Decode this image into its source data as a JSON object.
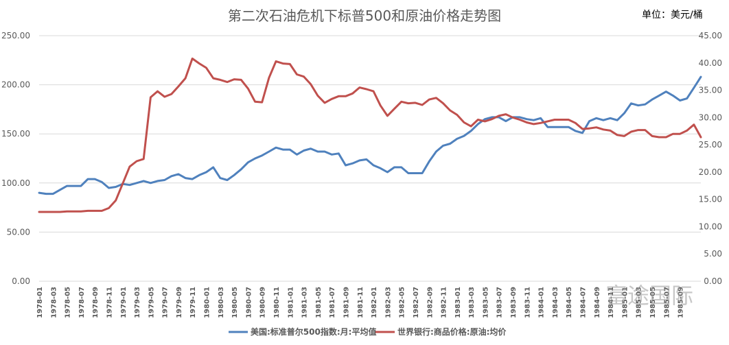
{
  "chart_data": {
    "type": "line",
    "title": "第二次石油危机下标普500和原油价格走势图",
    "unit_label": "单位：美元/桶",
    "watermark": "富途国际",
    "y_left": {
      "ylim": [
        0,
        250
      ],
      "ticks": [
        "0.00",
        "50.00",
        "100.00",
        "150.00",
        "200.00",
        "250.00"
      ]
    },
    "y_right": {
      "ylim": [
        0,
        45
      ],
      "ticks": [
        "0.00",
        "5.00",
        "10.00",
        "15.00",
        "20.00",
        "25.00",
        "30.00",
        "35.00",
        "40.00",
        "45.00"
      ]
    },
    "x_tick_labels": [
      "1978-01",
      "1978-03",
      "1978-05",
      "1978-07",
      "1978-09",
      "1978-11",
      "1979-01",
      "1979-03",
      "1979-05",
      "1979-07",
      "1979-09",
      "1979-11",
      "1980-01",
      "1980-03",
      "1980-05",
      "1980-07",
      "1980-09",
      "1980-11",
      "1981-01",
      "1981-03",
      "1981-05",
      "1981-07",
      "1981-09",
      "1981-11",
      "1982-01",
      "1982-03",
      "1982-05",
      "1982-07",
      "1982-09",
      "1982-11",
      "1983-01",
      "1983-03",
      "1983-05",
      "1983-07",
      "1983-09",
      "1983-11",
      "1984-01",
      "1984-03",
      "1984-05",
      "1984-07",
      "1984-09",
      "1984-11",
      "1985-01",
      "1985-03",
      "1985-05",
      "1985-07",
      "1985-09"
    ],
    "series": [
      {
        "name": "美国:标准普尔500指数:月:平均值",
        "color": "#4f81bd",
        "axis": "left",
        "values": [
          90,
          89,
          89,
          93,
          97,
          97,
          97,
          104,
          104,
          101,
          95,
          96,
          99,
          98,
          100,
          102,
          100,
          102,
          103,
          107,
          109,
          105,
          104,
          108,
          111,
          116,
          105,
          103,
          108,
          114,
          121,
          125,
          128,
          132,
          136,
          134,
          134,
          129,
          133,
          135,
          132,
          132,
          129,
          130,
          118,
          120,
          123,
          124,
          118,
          115,
          111,
          116,
          116,
          110,
          110,
          110,
          122,
          132,
          138,
          140,
          145,
          148,
          153,
          160,
          165,
          167,
          167,
          163,
          167,
          167,
          165,
          164,
          166,
          157,
          157,
          157,
          157,
          153,
          151,
          163,
          166,
          164,
          166,
          164,
          171,
          181,
          179,
          180,
          185,
          189,
          193,
          189,
          184,
          186,
          197,
          208
        ]
      },
      {
        "name": "世界银行:商品价格:原油:均价",
        "color": "#c0504d",
        "axis": "right",
        "values": [
          12.7,
          12.7,
          12.7,
          12.7,
          12.8,
          12.8,
          12.8,
          12.9,
          12.9,
          12.9,
          13.4,
          14.8,
          17.9,
          21.0,
          22.0,
          22.4,
          33.7,
          34.8,
          33.8,
          34.3,
          35.7,
          37.2,
          40.8,
          39.9,
          39.1,
          37.2,
          36.9,
          36.5,
          37.0,
          36.9,
          35.3,
          32.9,
          32.8,
          37.3,
          40.3,
          39.9,
          39.8,
          37.9,
          37.5,
          36.1,
          34.0,
          32.7,
          33.4,
          33.9,
          33.9,
          34.4,
          35.5,
          35.2,
          34.8,
          32.2,
          30.3,
          31.6,
          32.9,
          32.6,
          32.7,
          32.3,
          33.3,
          33.6,
          32.6,
          31.3,
          30.5,
          29.1,
          28.4,
          29.6,
          29.3,
          29.7,
          30.3,
          30.6,
          30.0,
          29.6,
          29.1,
          28.8,
          29.0,
          29.3,
          29.6,
          29.6,
          29.6,
          29.0,
          27.9,
          28.0,
          28.2,
          27.8,
          27.6,
          26.8,
          26.6,
          27.4,
          27.7,
          27.7,
          26.6,
          26.4,
          26.4,
          27.0,
          27.0,
          27.6,
          28.7,
          26.4
        ]
      }
    ]
  }
}
